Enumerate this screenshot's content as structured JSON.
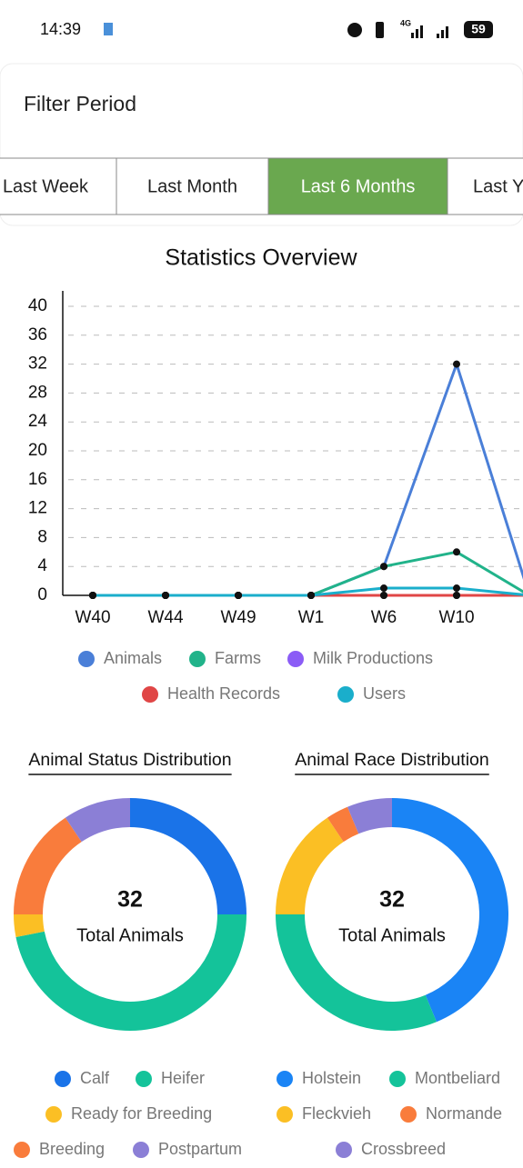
{
  "status_bar": {
    "time": "14:39",
    "network": "4G",
    "battery": "59"
  },
  "filter": {
    "title": "Filter Period",
    "tabs": [
      "Last Week",
      "Last Month",
      "Last 6 Months",
      "Last Year"
    ],
    "active_tab": 2,
    "active_color": "#6aa84f"
  },
  "line_chart": {
    "type": "line",
    "title": "Statistics Overview",
    "categories": [
      "W40",
      "W44",
      "W49",
      "W1",
      "W6",
      "W10",
      null
    ],
    "series": [
      {
        "name": "Animals",
        "color": "#4a7fd8",
        "values": [
          0,
          0,
          0,
          0,
          4,
          32,
          0
        ]
      },
      {
        "name": "Farms",
        "color": "#21b38a",
        "values": [
          0,
          0,
          0,
          0,
          4,
          6,
          0
        ]
      },
      {
        "name": "Milk Productions",
        "color": "#8b5cf6",
        "values": [
          0,
          0,
          0,
          0,
          0,
          0,
          0
        ]
      },
      {
        "name": "Health Records",
        "color": "#e04646",
        "values": [
          0,
          0,
          0,
          0,
          0,
          0,
          0
        ]
      },
      {
        "name": "Users",
        "color": "#1aaecb",
        "values": [
          0,
          0,
          0,
          0,
          1,
          1,
          0
        ]
      }
    ],
    "ylim": [
      0,
      40
    ],
    "yticks": [
      0,
      4,
      8,
      12,
      16,
      20,
      24,
      28,
      32,
      36,
      40
    ],
    "grid": true
  },
  "donuts": [
    {
      "type": "donut",
      "title": "Animal Status Distribution",
      "total": 32,
      "total_label": "Total Animals",
      "categories": [
        "Calf",
        "Heifer",
        "Ready for Breeding",
        "Breeding",
        "Postpartum"
      ],
      "values": [
        8,
        15,
        1,
        5,
        3
      ],
      "colors": [
        "#1a73e8",
        "#14c39a",
        "#fbbf24",
        "#f97c3c",
        "#8b7fd6"
      ]
    },
    {
      "type": "donut",
      "title": "Animal Race Distribution",
      "total": 32,
      "total_label": "Total Animals",
      "categories": [
        "Holstein",
        "Montbeliard",
        "Fleckvieh",
        "Normande",
        "Crossbreed"
      ],
      "values": [
        14,
        10,
        5,
        1,
        2
      ],
      "colors": [
        "#1a84f5",
        "#14c39a",
        "#fbbf24",
        "#f97c3c",
        "#8b7fd6"
      ]
    }
  ]
}
